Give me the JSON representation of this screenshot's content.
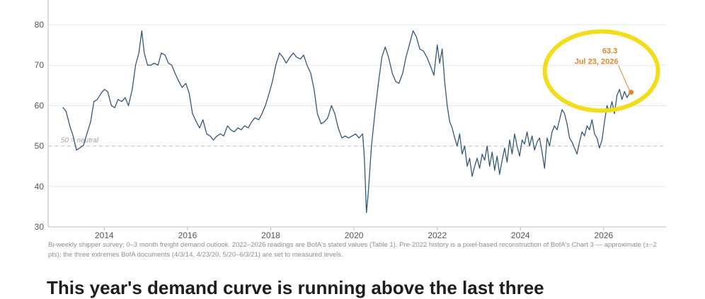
{
  "chart_data": {
    "type": "line",
    "xlim": [
      2012.65,
      2027.5
    ],
    "ylim": [
      30,
      80
    ],
    "x_ticks": [
      2014,
      2016,
      2018,
      2020,
      2022,
      2024,
      2026
    ],
    "y_ticks": [
      30,
      40,
      50,
      60,
      70,
      80
    ],
    "grid": true,
    "line_color": "#34577a",
    "reference_line": {
      "value": 50,
      "label": "50 = neutral",
      "color": "#c5ccd4"
    },
    "series": [
      {
        "points": [
          [
            2013.0,
            59.6
          ],
          [
            2013.08,
            58.6
          ],
          [
            2013.17,
            55.0
          ],
          [
            2013.25,
            52.5
          ],
          [
            2013.33,
            49.0
          ],
          [
            2013.42,
            49.6
          ],
          [
            2013.5,
            50.2
          ],
          [
            2013.58,
            53.0
          ],
          [
            2013.67,
            56.0
          ],
          [
            2013.75,
            61.0
          ],
          [
            2013.83,
            61.5
          ],
          [
            2013.92,
            63.0
          ],
          [
            2014.0,
            64.0
          ],
          [
            2014.08,
            63.5
          ],
          [
            2014.17,
            60.0
          ],
          [
            2014.25,
            59.5
          ],
          [
            2014.33,
            61.5
          ],
          [
            2014.42,
            61.0
          ],
          [
            2014.5,
            62.0
          ],
          [
            2014.58,
            60.0
          ],
          [
            2014.67,
            64.0
          ],
          [
            2014.75,
            70.0
          ],
          [
            2014.83,
            73.0
          ],
          [
            2014.9,
            78.5
          ],
          [
            2014.96,
            73.0
          ],
          [
            2015.04,
            70.0
          ],
          [
            2015.12,
            70.0
          ],
          [
            2015.2,
            70.5
          ],
          [
            2015.29,
            70.0
          ],
          [
            2015.37,
            73.0
          ],
          [
            2015.46,
            72.5
          ],
          [
            2015.54,
            70.5
          ],
          [
            2015.62,
            70.0
          ],
          [
            2015.7,
            68.0
          ],
          [
            2015.79,
            66.0
          ],
          [
            2015.87,
            64.5
          ],
          [
            2015.96,
            65.5
          ],
          [
            2016.04,
            63.0
          ],
          [
            2016.12,
            58.0
          ],
          [
            2016.21,
            56.0
          ],
          [
            2016.29,
            54.5
          ],
          [
            2016.37,
            56.5
          ],
          [
            2016.46,
            53.0
          ],
          [
            2016.54,
            52.5
          ],
          [
            2016.62,
            51.5
          ],
          [
            2016.71,
            52.5
          ],
          [
            2016.79,
            53.0
          ],
          [
            2016.87,
            52.5
          ],
          [
            2016.96,
            55.0
          ],
          [
            2017.04,
            54.0
          ],
          [
            2017.12,
            53.5
          ],
          [
            2017.21,
            54.5
          ],
          [
            2017.29,
            54.0
          ],
          [
            2017.37,
            55.0
          ],
          [
            2017.46,
            54.5
          ],
          [
            2017.54,
            56.0
          ],
          [
            2017.62,
            57.0
          ],
          [
            2017.71,
            56.5
          ],
          [
            2017.79,
            58.0
          ],
          [
            2017.87,
            60.0
          ],
          [
            2017.96,
            63.0
          ],
          [
            2018.04,
            66.0
          ],
          [
            2018.12,
            70.0
          ],
          [
            2018.21,
            73.0
          ],
          [
            2018.29,
            72.0
          ],
          [
            2018.37,
            70.5
          ],
          [
            2018.46,
            72.0
          ],
          [
            2018.54,
            73.0
          ],
          [
            2018.62,
            72.0
          ],
          [
            2018.71,
            71.5
          ],
          [
            2018.79,
            72.5
          ],
          [
            2018.87,
            70.0
          ],
          [
            2018.96,
            68.0
          ],
          [
            2019.04,
            64.0
          ],
          [
            2019.12,
            58.0
          ],
          [
            2019.21,
            55.5
          ],
          [
            2019.29,
            56.0
          ],
          [
            2019.37,
            57.0
          ],
          [
            2019.46,
            60.0
          ],
          [
            2019.54,
            58.0
          ],
          [
            2019.62,
            54.5
          ],
          [
            2019.71,
            52.0
          ],
          [
            2019.79,
            52.5
          ],
          [
            2019.87,
            52.0
          ],
          [
            2019.96,
            52.5
          ],
          [
            2020.04,
            53.0
          ],
          [
            2020.12,
            52.0
          ],
          [
            2020.21,
            53.0
          ],
          [
            2020.25,
            47.0
          ],
          [
            2020.3,
            33.5
          ],
          [
            2020.34,
            38.0
          ],
          [
            2020.42,
            50.0
          ],
          [
            2020.5,
            58.0
          ],
          [
            2020.58,
            65.0
          ],
          [
            2020.67,
            72.0
          ],
          [
            2020.75,
            74.5
          ],
          [
            2020.83,
            72.0
          ],
          [
            2020.92,
            68.0
          ],
          [
            2021.0,
            66.0
          ],
          [
            2021.08,
            65.5
          ],
          [
            2021.17,
            68.0
          ],
          [
            2021.25,
            72.0
          ],
          [
            2021.33,
            75.0
          ],
          [
            2021.42,
            78.5
          ],
          [
            2021.5,
            77.0
          ],
          [
            2021.58,
            74.0
          ],
          [
            2021.67,
            73.5
          ],
          [
            2021.75,
            72.0
          ],
          [
            2021.83,
            70.0
          ],
          [
            2021.92,
            67.5
          ],
          [
            2022.0,
            75.0
          ],
          [
            2022.06,
            70.5
          ],
          [
            2022.12,
            74.0
          ],
          [
            2022.18,
            66.0
          ],
          [
            2022.24,
            60.0
          ],
          [
            2022.3,
            56.0
          ],
          [
            2022.36,
            54.5
          ],
          [
            2022.42,
            52.0
          ],
          [
            2022.48,
            50.0
          ],
          [
            2022.54,
            53.0
          ],
          [
            2022.6,
            48.0
          ],
          [
            2022.66,
            50.0
          ],
          [
            2022.72,
            45.0
          ],
          [
            2022.78,
            47.0
          ],
          [
            2022.84,
            42.5
          ],
          [
            2022.9,
            45.0
          ],
          [
            2022.96,
            47.0
          ],
          [
            2023.02,
            44.5
          ],
          [
            2023.08,
            48.0
          ],
          [
            2023.14,
            46.5
          ],
          [
            2023.2,
            50.0
          ],
          [
            2023.26,
            45.0
          ],
          [
            2023.32,
            48.5
          ],
          [
            2023.38,
            44.0
          ],
          [
            2023.44,
            47.5
          ],
          [
            2023.5,
            43.0
          ],
          [
            2023.56,
            46.5
          ],
          [
            2023.62,
            49.5
          ],
          [
            2023.68,
            46.0
          ],
          [
            2023.74,
            51.5
          ],
          [
            2023.8,
            48.0
          ],
          [
            2023.86,
            53.0
          ],
          [
            2023.92,
            50.0
          ],
          [
            2023.98,
            47.5
          ],
          [
            2024.04,
            51.5
          ],
          [
            2024.1,
            50.5
          ],
          [
            2024.16,
            53.5
          ],
          [
            2024.22,
            50.0
          ],
          [
            2024.28,
            52.5
          ],
          [
            2024.34,
            49.0
          ],
          [
            2024.4,
            51.0
          ],
          [
            2024.46,
            52.0
          ],
          [
            2024.52,
            48.5
          ],
          [
            2024.58,
            44.5
          ],
          [
            2024.64,
            52.0
          ],
          [
            2024.7,
            50.0
          ],
          [
            2024.76,
            53.5
          ],
          [
            2024.82,
            55.0
          ],
          [
            2024.88,
            54.0
          ],
          [
            2024.94,
            56.5
          ],
          [
            2025.0,
            59.0
          ],
          [
            2025.06,
            58.0
          ],
          [
            2025.12,
            55.5
          ],
          [
            2025.18,
            52.0
          ],
          [
            2025.24,
            51.0
          ],
          [
            2025.3,
            49.5
          ],
          [
            2025.36,
            48.0
          ],
          [
            2025.42,
            51.0
          ],
          [
            2025.48,
            53.5
          ],
          [
            2025.54,
            52.5
          ],
          [
            2025.6,
            55.0
          ],
          [
            2025.66,
            54.0
          ],
          [
            2025.72,
            56.5
          ],
          [
            2025.78,
            53.0
          ],
          [
            2025.84,
            52.0
          ],
          [
            2025.9,
            49.5
          ],
          [
            2025.96,
            51.5
          ],
          [
            2026.02,
            56.0
          ],
          [
            2026.08,
            60.0
          ],
          [
            2026.14,
            58.5
          ],
          [
            2026.2,
            61.0
          ],
          [
            2026.26,
            58.0
          ],
          [
            2026.32,
            62.5
          ],
          [
            2026.38,
            64.0
          ],
          [
            2026.44,
            61.5
          ],
          [
            2026.5,
            63.5
          ],
          [
            2026.56,
            62.0
          ],
          [
            2026.62,
            63.0
          ],
          [
            2026.66,
            63.3
          ]
        ]
      }
    ],
    "callout": {
      "value": "63.3",
      "date": "Jul 23, 2026",
      "x": 2026.66,
      "y": 63.3,
      "color": "#d88a2c",
      "ring_color": "#f2dd1a"
    }
  },
  "caption": "Bi-weekly shipper survey; 0–3 month freight demand outlook. 2022–2026 readings are BofA's stated values (Table 1). Pre-2022 history is a pixel-based reconstruction of BofA's Chart 3 — approximate (±~2 pts); the three extremes BofA documents (4/3/14, 4/23/20, 5/20–6/3/21) are set to measured levels.",
  "headline": "This year's demand curve is running above the last three"
}
